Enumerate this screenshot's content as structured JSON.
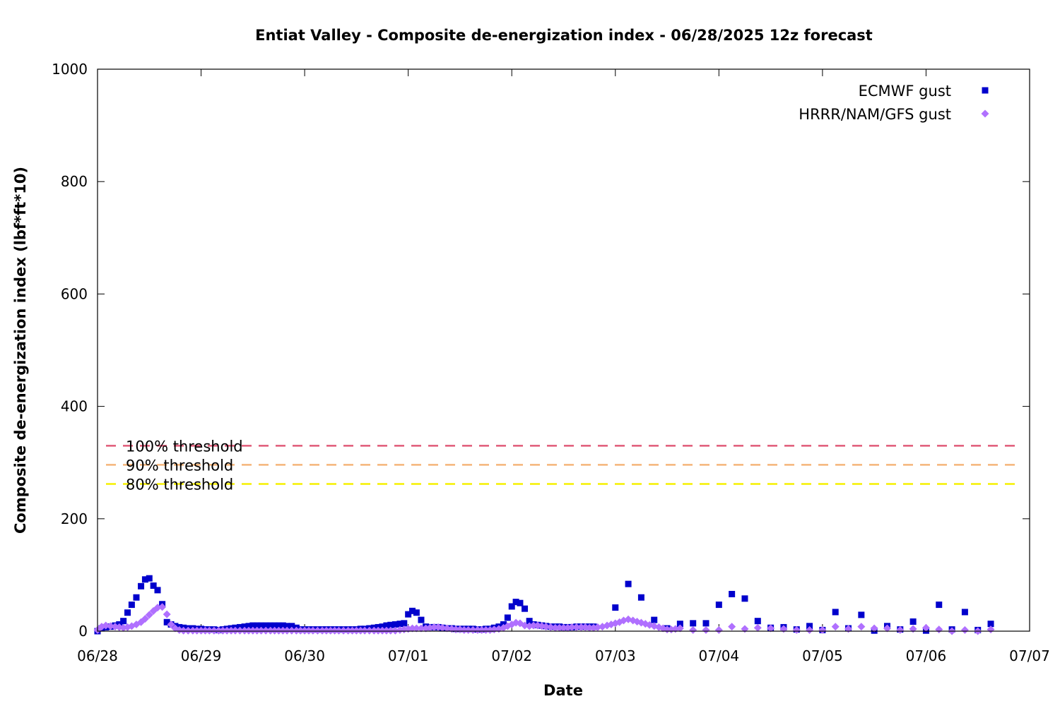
{
  "chart_data": {
    "type": "scatter",
    "title": "Entiat Valley - Composite de-energization index - 06/28/2025 12z forecast",
    "xlabel": "Date",
    "ylabel": "Composite de-energization index (lbf*ft*10)",
    "ylim": [
      0,
      1000
    ],
    "yticks": [
      0,
      200,
      400,
      600,
      800,
      1000
    ],
    "xlim_days": [
      0,
      9
    ],
    "xticks": [
      "06/28",
      "06/29",
      "06/30",
      "07/01",
      "07/02",
      "07/03",
      "07/04",
      "07/05",
      "07/06",
      "07/07"
    ],
    "legend_position": "top-right",
    "thresholds": [
      {
        "label": "100% threshold",
        "value": 330,
        "color": "#e05a78"
      },
      {
        "label": "90% threshold",
        "value": 296,
        "color": "#f5b57a"
      },
      {
        "label": "80% threshold",
        "value": 262,
        "color": "#f5f000"
      }
    ],
    "series": [
      {
        "name": "ECMWF gust",
        "marker": "square",
        "color": "#0000cc",
        "points": [
          [
            0.0,
            0
          ],
          [
            0.04,
            5
          ],
          [
            0.08,
            7
          ],
          [
            0.125,
            8
          ],
          [
            0.17,
            10
          ],
          [
            0.21,
            12
          ],
          [
            0.25,
            18
          ],
          [
            0.29,
            33
          ],
          [
            0.33,
            47
          ],
          [
            0.375,
            60
          ],
          [
            0.42,
            80
          ],
          [
            0.46,
            92
          ],
          [
            0.5,
            94
          ],
          [
            0.54,
            81
          ],
          [
            0.58,
            73
          ],
          [
            0.625,
            48
          ],
          [
            0.67,
            16
          ],
          [
            0.71,
            12
          ],
          [
            0.75,
            9
          ],
          [
            0.79,
            7
          ],
          [
            0.83,
            6
          ],
          [
            0.875,
            5
          ],
          [
            0.92,
            5
          ],
          [
            0.96,
            4
          ],
          [
            1.0,
            4
          ],
          [
            1.04,
            3
          ],
          [
            1.08,
            3
          ],
          [
            1.125,
            3
          ],
          [
            1.17,
            2
          ],
          [
            1.21,
            3
          ],
          [
            1.25,
            4
          ],
          [
            1.29,
            5
          ],
          [
            1.33,
            6
          ],
          [
            1.375,
            7
          ],
          [
            1.42,
            8
          ],
          [
            1.46,
            9
          ],
          [
            1.5,
            10
          ],
          [
            1.54,
            10
          ],
          [
            1.58,
            10
          ],
          [
            1.625,
            10
          ],
          [
            1.67,
            10
          ],
          [
            1.71,
            10
          ],
          [
            1.75,
            10
          ],
          [
            1.79,
            10
          ],
          [
            1.83,
            9
          ],
          [
            1.875,
            9
          ],
          [
            1.92,
            6
          ],
          [
            1.96,
            3
          ],
          [
            2.0,
            3
          ],
          [
            2.04,
            3
          ],
          [
            2.08,
            3
          ],
          [
            2.125,
            3
          ],
          [
            2.17,
            3
          ],
          [
            2.21,
            3
          ],
          [
            2.25,
            3
          ],
          [
            2.29,
            3
          ],
          [
            2.33,
            3
          ],
          [
            2.375,
            3
          ],
          [
            2.42,
            3
          ],
          [
            2.46,
            3
          ],
          [
            2.5,
            3
          ],
          [
            2.54,
            4
          ],
          [
            2.58,
            4
          ],
          [
            2.625,
            5
          ],
          [
            2.67,
            6
          ],
          [
            2.71,
            7
          ],
          [
            2.75,
            8
          ],
          [
            2.79,
            10
          ],
          [
            2.83,
            11
          ],
          [
            2.875,
            12
          ],
          [
            2.92,
            13
          ],
          [
            2.96,
            14
          ],
          [
            3.0,
            30
          ],
          [
            3.04,
            36
          ],
          [
            3.08,
            33
          ],
          [
            3.125,
            20
          ],
          [
            3.17,
            8
          ],
          [
            3.21,
            7
          ],
          [
            3.25,
            7
          ],
          [
            3.29,
            7
          ],
          [
            3.33,
            6
          ],
          [
            3.375,
            5
          ],
          [
            3.42,
            5
          ],
          [
            3.46,
            4
          ],
          [
            3.5,
            4
          ],
          [
            3.54,
            4
          ],
          [
            3.58,
            4
          ],
          [
            3.625,
            4
          ],
          [
            3.67,
            3
          ],
          [
            3.71,
            3
          ],
          [
            3.75,
            4
          ],
          [
            3.79,
            4
          ],
          [
            3.83,
            6
          ],
          [
            3.875,
            8
          ],
          [
            3.92,
            12
          ],
          [
            3.96,
            24
          ],
          [
            4.0,
            44
          ],
          [
            4.04,
            52
          ],
          [
            4.08,
            50
          ],
          [
            4.125,
            40
          ],
          [
            4.17,
            18
          ],
          [
            4.21,
            12
          ],
          [
            4.25,
            11
          ],
          [
            4.29,
            10
          ],
          [
            4.33,
            9
          ],
          [
            4.375,
            8
          ],
          [
            4.42,
            8
          ],
          [
            4.46,
            8
          ],
          [
            4.5,
            7
          ],
          [
            4.54,
            7
          ],
          [
            4.58,
            7
          ],
          [
            4.625,
            8
          ],
          [
            4.67,
            8
          ],
          [
            4.71,
            8
          ],
          [
            4.75,
            8
          ],
          [
            4.79,
            8
          ],
          [
            5.0,
            42
          ],
          [
            5.125,
            84
          ],
          [
            5.25,
            60
          ],
          [
            5.375,
            20
          ],
          [
            5.5,
            5
          ],
          [
            5.625,
            13
          ],
          [
            5.75,
            14
          ],
          [
            5.875,
            14
          ],
          [
            6.0,
            47
          ],
          [
            6.125,
            66
          ],
          [
            6.25,
            58
          ],
          [
            6.375,
            18
          ],
          [
            6.5,
            6
          ],
          [
            6.625,
            7
          ],
          [
            6.75,
            3
          ],
          [
            6.875,
            9
          ],
          [
            7.0,
            2
          ],
          [
            7.125,
            34
          ],
          [
            7.25,
            5
          ],
          [
            7.375,
            29
          ],
          [
            7.5,
            1
          ],
          [
            7.625,
            9
          ],
          [
            7.75,
            3
          ],
          [
            7.875,
            17
          ],
          [
            8.0,
            1
          ],
          [
            8.125,
            47
          ],
          [
            8.25,
            3
          ],
          [
            8.375,
            34
          ],
          [
            8.5,
            2
          ],
          [
            8.625,
            13
          ]
        ]
      },
      {
        "name": "HRRR/NAM/GFS gust",
        "marker": "diamond",
        "color": "#b070ff",
        "points": [
          [
            0.0,
            2
          ],
          [
            0.04,
            8
          ],
          [
            0.08,
            10
          ],
          [
            0.125,
            9
          ],
          [
            0.17,
            8
          ],
          [
            0.21,
            7
          ],
          [
            0.25,
            6
          ],
          [
            0.29,
            7
          ],
          [
            0.33,
            9
          ],
          [
            0.375,
            12
          ],
          [
            0.42,
            16
          ],
          [
            0.46,
            22
          ],
          [
            0.5,
            29
          ],
          [
            0.54,
            36
          ],
          [
            0.58,
            42
          ],
          [
            0.625,
            43
          ],
          [
            0.67,
            30
          ],
          [
            0.71,
            12
          ],
          [
            0.75,
            5
          ],
          [
            0.79,
            2
          ],
          [
            0.83,
            1
          ],
          [
            0.875,
            1
          ],
          [
            0.92,
            1
          ],
          [
            0.96,
            1
          ],
          [
            1.0,
            1
          ],
          [
            1.04,
            1
          ],
          [
            1.08,
            1
          ],
          [
            1.125,
            1
          ],
          [
            1.17,
            1
          ],
          [
            1.21,
            1
          ],
          [
            1.25,
            1
          ],
          [
            1.29,
            1
          ],
          [
            1.33,
            1
          ],
          [
            1.375,
            1
          ],
          [
            1.42,
            1
          ],
          [
            1.46,
            1
          ],
          [
            1.5,
            1
          ],
          [
            1.54,
            1
          ],
          [
            1.58,
            1
          ],
          [
            1.625,
            1
          ],
          [
            1.67,
            1
          ],
          [
            1.71,
            1
          ],
          [
            1.75,
            1
          ],
          [
            1.79,
            1
          ],
          [
            1.83,
            1
          ],
          [
            1.875,
            1
          ],
          [
            1.92,
            1
          ],
          [
            1.96,
            1
          ],
          [
            2.0,
            1
          ],
          [
            2.04,
            1
          ],
          [
            2.08,
            1
          ],
          [
            2.125,
            1
          ],
          [
            2.17,
            1
          ],
          [
            2.21,
            1
          ],
          [
            2.25,
            1
          ],
          [
            2.29,
            1
          ],
          [
            2.33,
            1
          ],
          [
            2.375,
            1
          ],
          [
            2.42,
            1
          ],
          [
            2.46,
            1
          ],
          [
            2.5,
            1
          ],
          [
            2.54,
            1
          ],
          [
            2.58,
            1
          ],
          [
            2.625,
            1
          ],
          [
            2.67,
            1
          ],
          [
            2.71,
            1
          ],
          [
            2.75,
            1
          ],
          [
            2.79,
            1
          ],
          [
            2.83,
            1
          ],
          [
            2.875,
            1
          ],
          [
            2.92,
            2
          ],
          [
            2.96,
            3
          ],
          [
            3.0,
            4
          ],
          [
            3.04,
            5
          ],
          [
            3.08,
            5
          ],
          [
            3.125,
            5
          ],
          [
            3.17,
            5
          ],
          [
            3.21,
            6
          ],
          [
            3.25,
            7
          ],
          [
            3.29,
            7
          ],
          [
            3.33,
            6
          ],
          [
            3.375,
            5
          ],
          [
            3.42,
            4
          ],
          [
            3.46,
            3
          ],
          [
            3.5,
            3
          ],
          [
            3.54,
            2
          ],
          [
            3.58,
            2
          ],
          [
            3.625,
            2
          ],
          [
            3.67,
            2
          ],
          [
            3.71,
            2
          ],
          [
            3.75,
            2
          ],
          [
            3.79,
            2
          ],
          [
            3.83,
            3
          ],
          [
            3.875,
            4
          ],
          [
            3.92,
            6
          ],
          [
            3.96,
            9
          ],
          [
            4.0,
            12
          ],
          [
            4.04,
            15
          ],
          [
            4.08,
            14
          ],
          [
            4.125,
            10
          ],
          [
            4.17,
            9
          ],
          [
            4.21,
            10
          ],
          [
            4.25,
            10
          ],
          [
            4.29,
            9
          ],
          [
            4.33,
            8
          ],
          [
            4.375,
            7
          ],
          [
            4.42,
            6
          ],
          [
            4.46,
            6
          ],
          [
            4.5,
            6
          ],
          [
            4.54,
            6
          ],
          [
            4.58,
            7
          ],
          [
            4.625,
            7
          ],
          [
            4.67,
            7
          ],
          [
            4.71,
            7
          ],
          [
            4.75,
            6
          ],
          [
            4.79,
            6
          ],
          [
            4.83,
            7
          ],
          [
            4.875,
            8
          ],
          [
            4.92,
            10
          ],
          [
            4.96,
            12
          ],
          [
            5.0,
            14
          ],
          [
            5.04,
            16
          ],
          [
            5.08,
            19
          ],
          [
            5.125,
            21
          ],
          [
            5.17,
            19
          ],
          [
            5.21,
            17
          ],
          [
            5.25,
            15
          ],
          [
            5.29,
            13
          ],
          [
            5.33,
            11
          ],
          [
            5.375,
            9
          ],
          [
            5.42,
            7
          ],
          [
            5.46,
            5
          ],
          [
            5.5,
            3
          ],
          [
            5.54,
            3
          ],
          [
            5.58,
            4
          ],
          [
            5.625,
            5
          ],
          [
            5.75,
            2
          ],
          [
            5.875,
            2
          ],
          [
            6.0,
            2
          ],
          [
            6.125,
            8
          ],
          [
            6.25,
            4
          ],
          [
            6.375,
            6
          ],
          [
            6.5,
            5
          ],
          [
            6.625,
            4
          ],
          [
            6.75,
            2
          ],
          [
            6.875,
            2
          ],
          [
            7.0,
            2
          ],
          [
            7.125,
            8
          ],
          [
            7.25,
            4
          ],
          [
            7.375,
            8
          ],
          [
            7.5,
            5
          ],
          [
            7.625,
            5
          ],
          [
            7.75,
            2
          ],
          [
            7.875,
            4
          ],
          [
            8.0,
            6
          ],
          [
            8.125,
            3
          ],
          [
            8.25,
            0
          ],
          [
            8.375,
            2
          ],
          [
            8.5,
            0
          ],
          [
            8.625,
            3
          ]
        ]
      }
    ]
  }
}
